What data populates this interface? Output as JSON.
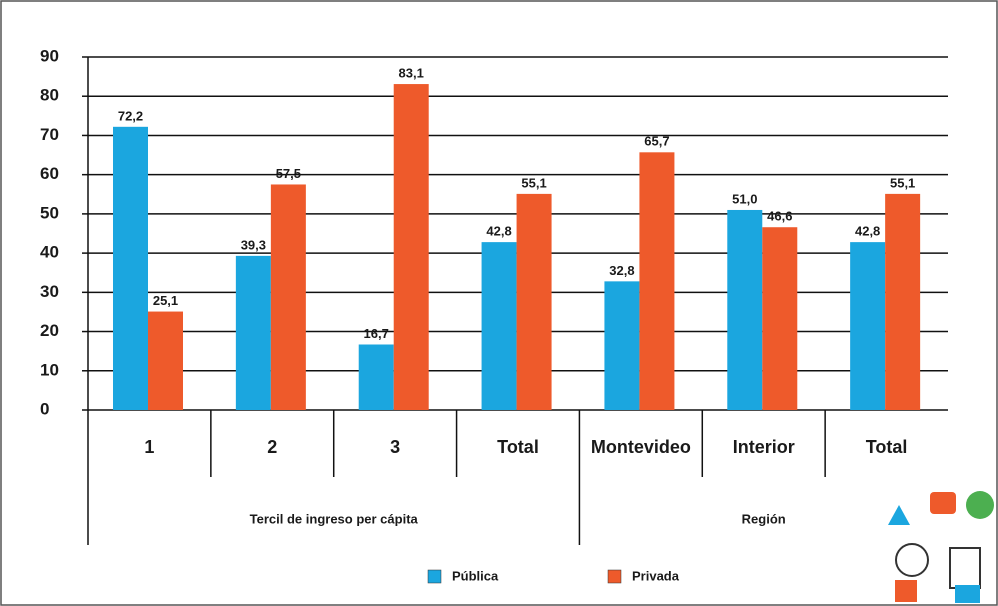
{
  "chart_data": {
    "type": "bar",
    "groups": [
      {
        "name": "Tercil de ingreso per cápita",
        "categories": [
          "1",
          "2",
          "3",
          "Total"
        ]
      },
      {
        "name": "Región",
        "categories": [
          "Montevideo",
          "Interior",
          "Total"
        ]
      }
    ],
    "series": [
      {
        "name": "Pública",
        "color": "#1ba6df",
        "values": [
          72.2,
          39.3,
          16.7,
          42.8,
          32.8,
          51.0,
          42.8
        ],
        "value_labels": [
          "72,2",
          "39,3",
          "16,7",
          "42,8",
          "32,8",
          "51,0",
          "42,8"
        ]
      },
      {
        "name": "Privada",
        "color": "#ee5a2b",
        "values": [
          25.1,
          57.5,
          83.1,
          55.1,
          65.7,
          46.6,
          55.1
        ],
        "value_labels": [
          "25,1",
          "57,5",
          "83,1",
          "55,1",
          "65,7",
          "46,6",
          "55,1"
        ]
      }
    ],
    "ylim": [
      0,
      90
    ],
    "yticks": [
      0,
      10,
      20,
      30,
      40,
      50,
      60,
      70,
      80,
      90
    ],
    "grid": true,
    "legend": "bottom"
  }
}
